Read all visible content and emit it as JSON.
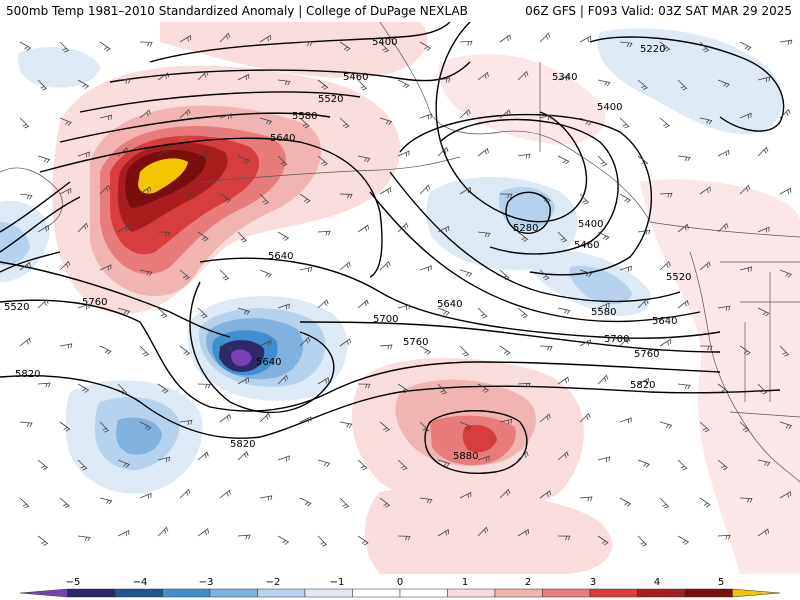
{
  "header": {
    "left_title": "500mb Temp 1981–2010 Standardized Anomaly | College of DuPage NEXLAB",
    "right_title": "06Z GFS | F093 Valid: 03Z SAT MAR 29 2025"
  },
  "map": {
    "contour_labels": [
      {
        "id": "5400-a",
        "text": "5400"
      },
      {
        "id": "5460-a",
        "text": "5460"
      },
      {
        "id": "5520-a",
        "text": "5520"
      },
      {
        "id": "5580-a",
        "text": "5580"
      },
      {
        "id": "5640-a",
        "text": "5640"
      },
      {
        "id": "5220-a",
        "text": "5220"
      },
      {
        "id": "5340-a",
        "text": "5340"
      },
      {
        "id": "5400-b",
        "text": "5400"
      },
      {
        "id": "5280-a",
        "text": "5280"
      },
      {
        "id": "5400-c",
        "text": "5400"
      },
      {
        "id": "5460-b",
        "text": "5460"
      },
      {
        "id": "5520-b",
        "text": "5520"
      },
      {
        "id": "5580-b",
        "text": "5580"
      },
      {
        "id": "5640-b",
        "text": "5640"
      },
      {
        "id": "5640-c",
        "text": "5640"
      },
      {
        "id": "5640-d",
        "text": "5640"
      },
      {
        "id": "5700-a",
        "text": "5700"
      },
      {
        "id": "5700-b",
        "text": "5700"
      },
      {
        "id": "5760-a",
        "text": "5760"
      },
      {
        "id": "5760-b",
        "text": "5760"
      },
      {
        "id": "5760-c",
        "text": "5760"
      },
      {
        "id": "5820-a",
        "text": "5820"
      },
      {
        "id": "5820-b",
        "text": "5820"
      },
      {
        "id": "5820-c",
        "text": "5820"
      },
      {
        "id": "5880-a",
        "text": "5880"
      },
      {
        "id": "5640-e",
        "text": "5640"
      },
      {
        "id": "5520-c",
        "text": "5520"
      }
    ],
    "colors": {
      "warm1": "#f9dcdc",
      "warm2": "#f2b3b3",
      "warm3": "#e87c7c",
      "warm4": "#d63d3d",
      "warm5": "#a81e1e",
      "warm6": "#7a0d0d",
      "extreme_warm": "#f5c400",
      "cool1": "#dde9f5",
      "cool2": "#b6d2ec",
      "cool3": "#7fb2de",
      "cool4": "#3f8fd0",
      "cool5": "#22558f",
      "cool6": "#2a2a6b",
      "extreme_cool": "#7b3fb5",
      "contour": "#000000",
      "barb": "#444444",
      "border": "#555555"
    }
  },
  "legend": {
    "tick_labels": [
      "−5",
      "−4",
      "−3",
      "−2",
      "−1",
      "0",
      "1",
      "2",
      "3",
      "4",
      "5"
    ],
    "colors": [
      "#7b3fb5",
      "#2a2a6b",
      "#22558f",
      "#3f8fd0",
      "#7fb2de",
      "#b6d2ec",
      "#dde9f5",
      "#ffffff",
      "#ffffff",
      "#f9dcdc",
      "#f2b3b3",
      "#e87c7c",
      "#d63d3d",
      "#a81e1e",
      "#7a0d0d",
      "#f5c400"
    ]
  }
}
